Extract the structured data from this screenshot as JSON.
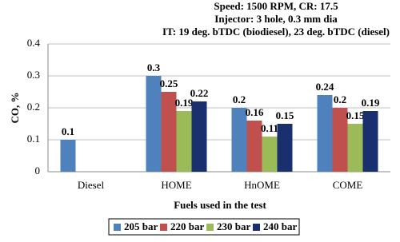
{
  "chart_data": {
    "type": "bar",
    "annotations": [
      "Speed: 1500 RPM, CR: 17.5",
      "Injector: 3 hole, 0.3 mm dia",
      "IT: 19 deg. bTDC (biodiesel), 23 deg. bTDC (diesel)"
    ],
    "x_label": "Fuels used in the test",
    "y_label": "CO, %",
    "categories": [
      "Diesel",
      "HOME",
      "HnOME",
      "COME"
    ],
    "series": [
      {
        "name": "205 bar",
        "color": "#4f81bd",
        "values": [
          0.1,
          0.3,
          0.2,
          0.24
        ]
      },
      {
        "name": "220 bar",
        "color": "#c0504d",
        "values": [
          null,
          0.25,
          0.16,
          0.2
        ]
      },
      {
        "name": "230 bar",
        "color": "#9bbb59",
        "values": [
          null,
          0.19,
          0.11,
          0.15
        ]
      },
      {
        "name": "240 bar",
        "color": "#1a2f6e",
        "values": [
          null,
          0.22,
          0.15,
          0.19
        ]
      }
    ],
    "ylim": [
      0,
      0.4
    ],
    "yticks": [
      0,
      0.1,
      0.2,
      0.3,
      0.4
    ],
    "grid": true,
    "legend": "bottom"
  }
}
